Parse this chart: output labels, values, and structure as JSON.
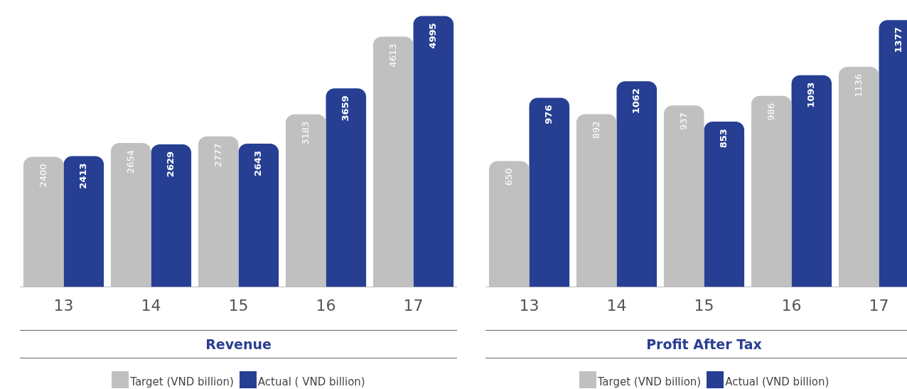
{
  "chart_data": [
    {
      "type": "bar",
      "title": "Revenue",
      "categories": [
        "13",
        "14",
        "15",
        "16",
        "17"
      ],
      "series": [
        {
          "name": "Target (VND billion)",
          "color": "#c0c0c0",
          "values": [
            2400,
            2654,
            2777,
            3183,
            4613
          ]
        },
        {
          "name": "Actual ( VND billion)",
          "color": "#263f92",
          "values": [
            2413,
            2629,
            2643,
            3659,
            4995
          ]
        }
      ],
      "data_labels": true,
      "grid": false,
      "legend": "bottom"
    },
    {
      "type": "bar",
      "title": "Profit After Tax",
      "categories": [
        "13",
        "14",
        "15",
        "16",
        "17"
      ],
      "series": [
        {
          "name": "Target (VND billion)",
          "color": "#c0c0c0",
          "values": [
            650,
            892,
            937,
            986,
            1136
          ]
        },
        {
          "name": "Actual (VND billion)",
          "color": "#263f92",
          "values": [
            976,
            1062,
            853,
            1093,
            1377
          ]
        }
      ],
      "data_labels": true,
      "grid": false,
      "legend": "bottom"
    }
  ]
}
